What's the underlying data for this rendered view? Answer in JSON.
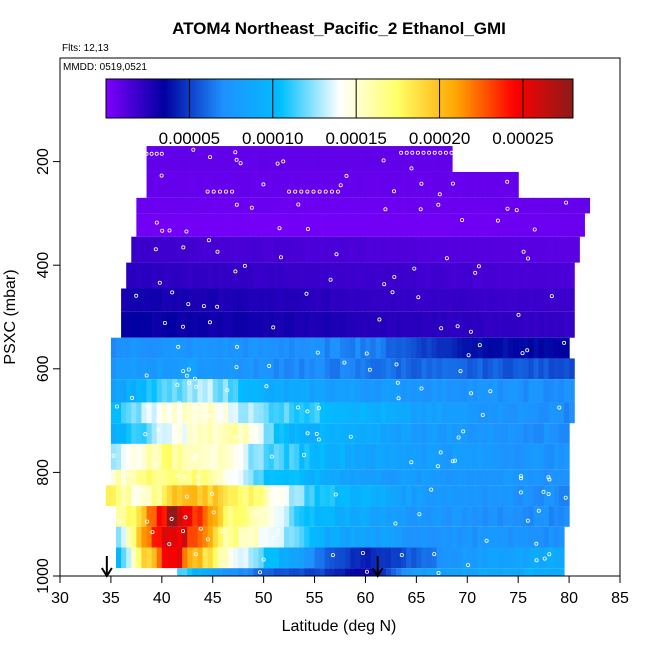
{
  "chart_data": {
    "type": "heatmap",
    "title": "ATOM4 Northeast_Pacific_2 Ethanol_GMI",
    "flights_text": "Flts: 12,13",
    "dates_text": "MMDD: 0519,0521",
    "xlabel": "Latitude (deg N)",
    "ylabel": "PSXC (mbar)",
    "xlim": [
      30,
      85
    ],
    "ylim": [
      1000,
      0
    ],
    "x_ticks": [
      "30",
      "35",
      "40",
      "45",
      "50",
      "55",
      "60",
      "65",
      "70",
      "75",
      "80",
      "85"
    ],
    "y_ticks": [
      "200",
      "400",
      "600",
      "800",
      "1000"
    ],
    "colorbar": {
      "range": [
        0,
        0.00028
      ],
      "tick_values": [
        5e-05,
        0.0001,
        0.00015,
        0.0002,
        0.00025
      ],
      "tick_labels": [
        "0.00005",
        "0.00010",
        "0.00015",
        "0.00020",
        "0.00025"
      ],
      "colors": [
        "#7f00ff",
        "#0000a0",
        "#1e90ff",
        "#00bfff",
        "#ffffff",
        "#ffff66",
        "#ffa500",
        "#ff0000",
        "#8b1a1a"
      ]
    },
    "layers": [
      {
        "p_top": 170,
        "p_bot": 220,
        "lat_min": 38.5,
        "lat_max": 68.5,
        "profile": [
          [
            38.5,
            8e-06
          ],
          [
            68.5,
            8e-06
          ]
        ]
      },
      {
        "p_top": 220,
        "p_bot": 270,
        "lat_min": 38.5,
        "lat_max": 75,
        "profile": [
          [
            38.5,
            7e-06
          ],
          [
            75,
            7e-06
          ]
        ]
      },
      {
        "p_top": 270,
        "p_bot": 300,
        "lat_min": 37.5,
        "lat_max": 82,
        "profile": [
          [
            37.5,
            6e-06
          ],
          [
            60,
            5e-06
          ],
          [
            82,
            7e-06
          ]
        ]
      },
      {
        "p_top": 300,
        "p_bot": 345,
        "lat_min": 37.5,
        "lat_max": 81.5,
        "profile": [
          [
            37.5,
            4e-06
          ],
          [
            50,
            3e-06
          ],
          [
            70,
            4e-06
          ],
          [
            81.5,
            6e-06
          ]
        ]
      },
      {
        "p_top": 345,
        "p_bot": 395,
        "lat_min": 37,
        "lat_max": 81,
        "profile": [
          [
            37,
            2e-05
          ],
          [
            45,
            1.6e-05
          ],
          [
            60,
            1.4e-05
          ],
          [
            81,
            1e-05
          ]
        ]
      },
      {
        "p_top": 395,
        "p_bot": 445,
        "lat_min": 36.5,
        "lat_max": 80.5,
        "profile": [
          [
            36.5,
            2.4e-05
          ],
          [
            50,
            2e-05
          ],
          [
            65,
            1.8e-05
          ],
          [
            80.5,
            1.4e-05
          ]
        ]
      },
      {
        "p_top": 445,
        "p_bot": 490,
        "lat_min": 36,
        "lat_max": 80.5,
        "profile": [
          [
            36,
            3e-05
          ],
          [
            45,
            2.8e-05
          ],
          [
            60,
            2.2e-05
          ],
          [
            80.5,
            1.8e-05
          ]
        ]
      },
      {
        "p_top": 490,
        "p_bot": 540,
        "lat_min": 36,
        "lat_max": 80.5,
        "profile": [
          [
            36,
            3.4e-05
          ],
          [
            50,
            3e-05
          ],
          [
            65,
            2.4e-05
          ],
          [
            80.5,
            2e-05
          ]
        ]
      },
      {
        "p_top": 540,
        "p_bot": 580,
        "lat_min": 35,
        "lat_max": 80,
        "profile": [
          [
            35,
            7.2e-05
          ],
          [
            45,
            7.4e-05
          ],
          [
            60,
            6.8e-05
          ],
          [
            70,
            4e-05
          ],
          [
            80,
            3.4e-05
          ]
        ]
      },
      {
        "p_top": 580,
        "p_bot": 620,
        "lat_min": 35,
        "lat_max": 80.5,
        "profile": [
          [
            35,
            7.5e-05
          ],
          [
            42,
            8e-05
          ],
          [
            50,
            7.2e-05
          ],
          [
            65,
            6e-05
          ],
          [
            80.5,
            5.5e-05
          ]
        ]
      },
      {
        "p_top": 620,
        "p_bot": 665,
        "lat_min": 35,
        "lat_max": 80.5,
        "profile": [
          [
            35,
            8e-05
          ],
          [
            40,
            0.000112
          ],
          [
            45,
            0.00013
          ],
          [
            50,
            9e-05
          ],
          [
            60,
            7.8e-05
          ],
          [
            80.5,
            7e-05
          ]
        ]
      },
      {
        "p_top": 665,
        "p_bot": 705,
        "lat_min": 35,
        "lat_max": 80.5,
        "profile": [
          [
            35,
            0.0001
          ],
          [
            40,
            0.000145
          ],
          [
            45,
            0.00015
          ],
          [
            50,
            0.00012
          ],
          [
            55,
            0.00011
          ],
          [
            65,
            8.2e-05
          ],
          [
            80.5,
            7e-05
          ]
        ]
      },
      {
        "p_top": 705,
        "p_bot": 745,
        "lat_min": 35,
        "lat_max": 80,
        "profile": [
          [
            35,
            9e-05
          ],
          [
            40,
            0.00013
          ],
          [
            43,
            0.00015
          ],
          [
            48,
            0.000158
          ],
          [
            52,
            0.0001
          ],
          [
            65,
            8e-05
          ],
          [
            80,
            7e-05
          ]
        ]
      },
      {
        "p_top": 745,
        "p_bot": 795,
        "lat_min": 35,
        "lat_max": 80,
        "profile": [
          [
            35,
            0.000125
          ],
          [
            40,
            0.000168
          ],
          [
            44,
            0.00016
          ],
          [
            50,
            0.00012
          ],
          [
            60,
            8.5e-05
          ],
          [
            80,
            7.2e-05
          ]
        ]
      },
      {
        "p_top": 795,
        "p_bot": 825,
        "lat_min": 35,
        "lat_max": 80,
        "profile": [
          [
            35,
            0.00015
          ],
          [
            40,
            0.000175
          ],
          [
            45,
            0.000165
          ],
          [
            50,
            0.00011
          ],
          [
            60,
            8e-05
          ],
          [
            80,
            7.2e-05
          ]
        ]
      },
      {
        "p_top": 825,
        "p_bot": 865,
        "lat_min": 34.5,
        "lat_max": 80,
        "profile": [
          [
            34.5,
            0.00019
          ],
          [
            38,
            0.00014
          ],
          [
            42,
            0.000205
          ],
          [
            46,
            0.000195
          ],
          [
            50,
            0.00016
          ],
          [
            55,
            0.00011
          ],
          [
            65,
            8e-05
          ],
          [
            80,
            7e-05
          ]
        ]
      },
      {
        "p_top": 865,
        "p_bot": 905,
        "lat_min": 35.5,
        "lat_max": 80,
        "profile": [
          [
            35.5,
            0.00015
          ],
          [
            38,
            0.00019
          ],
          [
            41,
            0.00027
          ],
          [
            43,
            0.00025
          ],
          [
            46,
            0.00018
          ],
          [
            50,
            0.00015
          ],
          [
            55,
            0.0001
          ],
          [
            65,
            7.5e-05
          ],
          [
            80,
            7e-05
          ]
        ]
      },
      {
        "p_top": 905,
        "p_bot": 945,
        "lat_min": 35.5,
        "lat_max": 79.5,
        "profile": [
          [
            35.5,
            0.00011
          ],
          [
            38,
            0.0002
          ],
          [
            41,
            0.000272
          ],
          [
            43,
            0.00024
          ],
          [
            46,
            0.00017
          ],
          [
            50,
            0.000145
          ],
          [
            56,
            9e-05
          ],
          [
            65,
            7.5e-05
          ],
          [
            79.5,
            7.2e-05
          ]
        ]
      },
      {
        "p_top": 945,
        "p_bot": 985,
        "lat_min": 35.5,
        "lat_max": 79.5,
        "profile": [
          [
            35.5,
            8.5e-05
          ],
          [
            38,
            0.00018
          ],
          [
            41,
            0.00026
          ],
          [
            43,
            0.00021
          ],
          [
            46,
            0.00016
          ],
          [
            50,
            0.00011
          ],
          [
            56,
            6e-05
          ],
          [
            60,
            4e-05
          ],
          [
            70,
            8e-05
          ],
          [
            79.5,
            9e-05
          ]
        ]
      },
      {
        "p_top": 985,
        "p_bot": 1010,
        "lat_min": 41.5,
        "lat_max": 79.5,
        "profile": [
          [
            41.5,
            0.00012
          ],
          [
            44,
            9e-05
          ],
          [
            50,
            6e-05
          ],
          [
            56,
            5e-05
          ],
          [
            60,
            3e-05
          ],
          [
            65,
            8e-05
          ],
          [
            79.5,
            9.5e-05
          ]
        ]
      }
    ],
    "arrows_lat": [
      34.6,
      61.2
    ],
    "gap_box": {
      "lat_min": 35,
      "lat_max": 41.5,
      "p_top": 985,
      "p_bot": 1010
    }
  }
}
